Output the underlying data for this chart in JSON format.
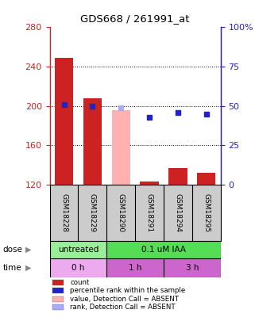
{
  "title": "GDS668 / 261991_at",
  "samples": [
    "GSM18228",
    "GSM18229",
    "GSM18290",
    "GSM18291",
    "GSM18294",
    "GSM18295"
  ],
  "bar_values": [
    249,
    208,
    null,
    123,
    137,
    132
  ],
  "bar_absent_values": [
    null,
    null,
    196,
    null,
    null,
    null
  ],
  "rank_values": [
    51,
    50,
    null,
    43,
    46,
    45
  ],
  "rank_absent_values": [
    null,
    null,
    49,
    null,
    null,
    null
  ],
  "bar_color": "#cc2222",
  "bar_absent_color": "#ffb0b0",
  "rank_color": "#2222cc",
  "rank_absent_color": "#aaaaff",
  "ylim_left": [
    120,
    280
  ],
  "ylim_right": [
    0,
    100
  ],
  "yticks_left": [
    120,
    160,
    200,
    240,
    280
  ],
  "yticks_right": [
    0,
    25,
    50,
    75,
    100
  ],
  "ytick_labels_right": [
    "0",
    "25",
    "50",
    "75",
    "100%"
  ],
  "dose_labels": [
    [
      "untreated",
      0,
      2
    ],
    [
      "0.1 uM IAA",
      2,
      6
    ]
  ],
  "time_labels": [
    [
      "0 h",
      0,
      2
    ],
    [
      "1 h",
      2,
      4
    ],
    [
      "3 h",
      4,
      6
    ]
  ],
  "dose_colors": [
    "#99ee99",
    "#55dd55"
  ],
  "time_colors": [
    "#eeaaee",
    "#cc66cc",
    "#cc66cc"
  ],
  "sample_bg_color": "#cccccc",
  "grid_lines": [
    240,
    200,
    160
  ],
  "legend_items": [
    {
      "color": "#cc2222",
      "label": "count"
    },
    {
      "color": "#2222cc",
      "label": "percentile rank within the sample"
    },
    {
      "color": "#ffb0b0",
      "label": "value, Detection Call = ABSENT"
    },
    {
      "color": "#aaaaff",
      "label": "rank, Detection Call = ABSENT"
    }
  ],
  "bar_width": 0.65
}
